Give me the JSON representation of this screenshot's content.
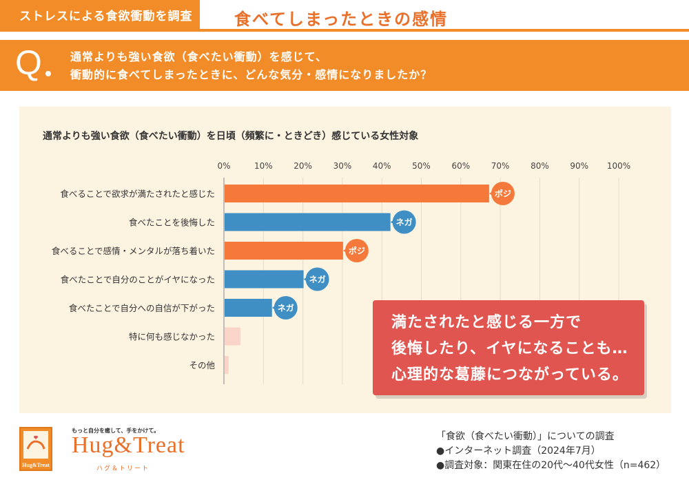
{
  "header": {
    "tag": "ストレスによる食欲衝動を調査",
    "title": "食べてしまったときの感情"
  },
  "question": {
    "mark": "Q",
    "line1": "通常よりも強い食欲（食べたい衝動）を感じて、",
    "line2": "衝動的に食べてしまったときに、どんな気分・感情になりましたか？"
  },
  "colors": {
    "accent": "#f28c28",
    "positive": "#f4793a",
    "negative": "#3f8fc4",
    "other": "#f9d4c8",
    "callout": "#e05550",
    "panel": "#fdf3e1"
  },
  "chart_data": {
    "type": "bar",
    "orientation": "horizontal",
    "title": "通常よりも強い食欲（食べたい衝動）を日頃（頻繁に・ときどき）感じている女性対象",
    "xlim": [
      0,
      100
    ],
    "ticks": [
      "0%",
      "10%",
      "20%",
      "30%",
      "40%",
      "50%",
      "60%",
      "70%",
      "80%",
      "90%",
      "100%"
    ],
    "categories": [
      "食べることで欲求が満たされたと感じた",
      "食べたことを後悔した",
      "食べることで感情・メンタルが落ち着いた",
      "食べたことで自分のことがイヤになった",
      "食べたことで自分への自信が下がった",
      "特に何も感じなかった",
      "その他"
    ],
    "values": [
      67,
      42,
      30,
      20,
      12,
      4,
      1
    ],
    "badges": [
      "ポジ",
      "ネガ",
      "ポジ",
      "ネガ",
      "ネガ",
      "",
      ""
    ],
    "kinds": [
      "positive",
      "negative",
      "positive",
      "negative",
      "negative",
      "other",
      "other"
    ]
  },
  "callout": {
    "line1": "満たされたと感じる一方で",
    "line2": "後悔したり、イヤになることも…",
    "line3": "心理的な葛藤につながっている。"
  },
  "brand": {
    "tagline": "もっと自分を癒して、手をかけて。",
    "name": "Hug&Treat",
    "kana": "ハグ＆トリート",
    "logo_label": "Hug&Treat"
  },
  "source": {
    "line1": "「食欲（食べたい衝動）」についての調査",
    "line2": "●インターネット調査（2024年7月）",
    "line3": "●調査対象：関東在住の20代～40代女性（n=462）"
  }
}
